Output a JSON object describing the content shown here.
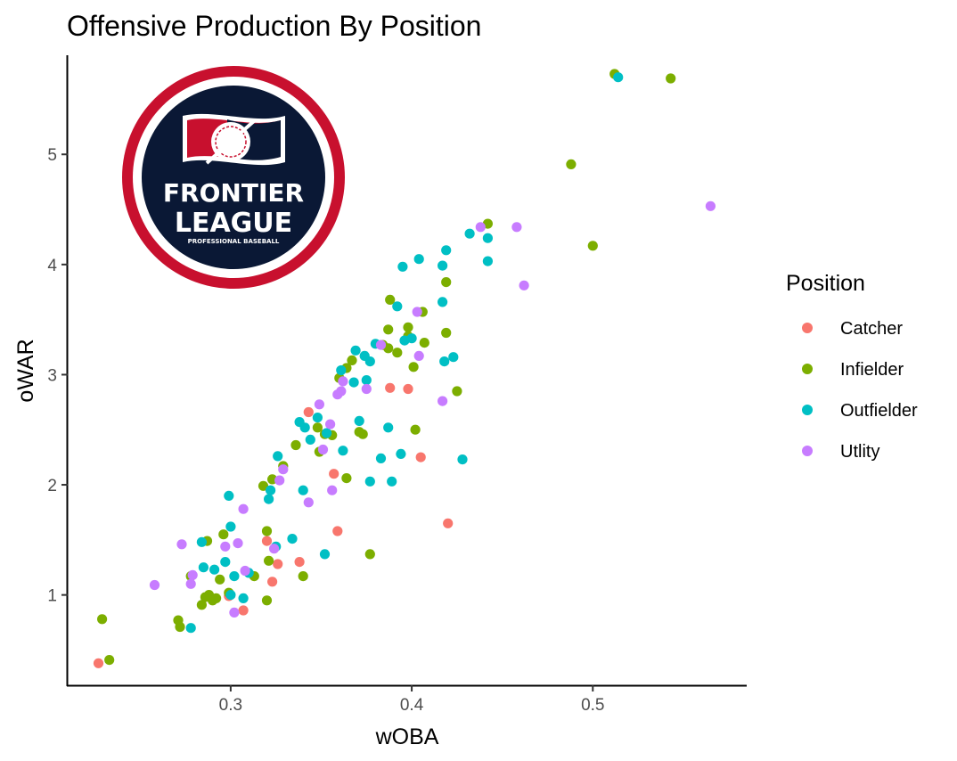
{
  "chart_data": {
    "type": "scatter",
    "title": "Offensive Production By Position",
    "xlabel": "wOBA",
    "ylabel": "oWAR",
    "xlim": [
      0.21,
      0.585
    ],
    "ylim": [
      0.18,
      5.9
    ],
    "x_ticks": [
      0.3,
      0.4,
      0.5
    ],
    "x_tick_labels": [
      "0.3",
      "0.4",
      "0.5"
    ],
    "y_ticks": [
      1,
      2,
      3,
      4,
      5
    ],
    "y_tick_labels": [
      "1",
      "2",
      "3",
      "4",
      "5"
    ],
    "grid": false,
    "legend": {
      "title": "Position",
      "placement": "right"
    },
    "logo": {
      "name": "frontier-league-logo",
      "line1": "FRONTIER",
      "line2": "LEAGUE",
      "line3": "PROFESSIONAL BASEBALL"
    },
    "series": [
      {
        "name": "Catcher",
        "color": "#F8766D",
        "points": [
          [
            0.227,
            0.38
          ],
          [
            0.307,
            0.86
          ],
          [
            0.299,
            0.99
          ],
          [
            0.32,
            1.49
          ],
          [
            0.323,
            1.12
          ],
          [
            0.326,
            1.28
          ],
          [
            0.338,
            1.3
          ],
          [
            0.359,
            1.58
          ],
          [
            0.343,
            2.66
          ],
          [
            0.357,
            2.1
          ],
          [
            0.388,
            2.88
          ],
          [
            0.398,
            2.87
          ],
          [
            0.405,
            2.25
          ],
          [
            0.42,
            1.65
          ]
        ]
      },
      {
        "name": "Infielder",
        "color": "#7CAE00",
        "points": [
          [
            0.229,
            0.78
          ],
          [
            0.233,
            0.41
          ],
          [
            0.271,
            0.77
          ],
          [
            0.272,
            0.71
          ],
          [
            0.278,
            1.17
          ],
          [
            0.284,
            0.91
          ],
          [
            0.286,
            0.98
          ],
          [
            0.288,
            1.0
          ],
          [
            0.29,
            0.95
          ],
          [
            0.292,
            0.97
          ],
          [
            0.294,
            1.14
          ],
          [
            0.287,
            1.49
          ],
          [
            0.296,
            1.55
          ],
          [
            0.299,
            1.02
          ],
          [
            0.313,
            1.17
          ],
          [
            0.32,
            0.95
          ],
          [
            0.321,
            1.31
          ],
          [
            0.32,
            1.58
          ],
          [
            0.318,
            1.99
          ],
          [
            0.323,
            2.05
          ],
          [
            0.329,
            2.17
          ],
          [
            0.336,
            2.36
          ],
          [
            0.34,
            1.17
          ],
          [
            0.348,
            2.52
          ],
          [
            0.349,
            2.3
          ],
          [
            0.352,
            2.46
          ],
          [
            0.356,
            2.45
          ],
          [
            0.36,
            2.97
          ],
          [
            0.364,
            3.06
          ],
          [
            0.364,
            2.06
          ],
          [
            0.367,
            3.13
          ],
          [
            0.371,
            2.48
          ],
          [
            0.373,
            2.46
          ],
          [
            0.384,
            3.27
          ],
          [
            0.387,
            3.41
          ],
          [
            0.387,
            3.24
          ],
          [
            0.388,
            3.68
          ],
          [
            0.392,
            3.2
          ],
          [
            0.398,
            3.43
          ],
          [
            0.398,
            3.35
          ],
          [
            0.401,
            3.07
          ],
          [
            0.402,
            2.5
          ],
          [
            0.406,
            3.57
          ],
          [
            0.407,
            3.29
          ],
          [
            0.419,
            3.84
          ],
          [
            0.419,
            3.38
          ],
          [
            0.425,
            2.85
          ],
          [
            0.442,
            4.37
          ],
          [
            0.377,
            1.37
          ],
          [
            0.488,
            4.91
          ],
          [
            0.5,
            4.17
          ],
          [
            0.512,
            5.73
          ],
          [
            0.543,
            5.69
          ]
        ]
      },
      {
        "name": "Outfielder",
        "color": "#00BFC4",
        "points": [
          [
            0.278,
            0.7
          ],
          [
            0.285,
            1.25
          ],
          [
            0.284,
            1.48
          ],
          [
            0.291,
            1.23
          ],
          [
            0.297,
            1.3
          ],
          [
            0.3,
            1.62
          ],
          [
            0.299,
            1.9
          ],
          [
            0.302,
            1.17
          ],
          [
            0.3,
            1.0
          ],
          [
            0.307,
            0.97
          ],
          [
            0.31,
            1.2
          ],
          [
            0.321,
            1.87
          ],
          [
            0.322,
            1.95
          ],
          [
            0.325,
            1.44
          ],
          [
            0.326,
            2.26
          ],
          [
            0.334,
            1.51
          ],
          [
            0.338,
            2.57
          ],
          [
            0.34,
            1.95
          ],
          [
            0.341,
            2.52
          ],
          [
            0.344,
            2.41
          ],
          [
            0.348,
            2.61
          ],
          [
            0.352,
            1.37
          ],
          [
            0.353,
            2.47
          ],
          [
            0.361,
            3.04
          ],
          [
            0.362,
            2.31
          ],
          [
            0.368,
            2.93
          ],
          [
            0.369,
            3.22
          ],
          [
            0.371,
            2.58
          ],
          [
            0.374,
            3.17
          ],
          [
            0.375,
            2.95
          ],
          [
            0.377,
            2.03
          ],
          [
            0.377,
            3.12
          ],
          [
            0.38,
            3.28
          ],
          [
            0.383,
            2.24
          ],
          [
            0.387,
            2.52
          ],
          [
            0.389,
            2.03
          ],
          [
            0.392,
            3.62
          ],
          [
            0.394,
            2.28
          ],
          [
            0.395,
            3.98
          ],
          [
            0.396,
            3.31
          ],
          [
            0.4,
            3.33
          ],
          [
            0.404,
            4.05
          ],
          [
            0.418,
            3.12
          ],
          [
            0.417,
            3.66
          ],
          [
            0.417,
            3.99
          ],
          [
            0.419,
            4.13
          ],
          [
            0.423,
            3.16
          ],
          [
            0.428,
            2.23
          ],
          [
            0.432,
            4.28
          ],
          [
            0.442,
            4.03
          ],
          [
            0.442,
            4.24
          ],
          [
            0.514,
            5.7
          ]
        ]
      },
      {
        "name": "Utlity",
        "color": "#C77CFF",
        "points": [
          [
            0.258,
            1.09
          ],
          [
            0.273,
            1.46
          ],
          [
            0.278,
            1.1
          ],
          [
            0.279,
            1.18
          ],
          [
            0.297,
            1.44
          ],
          [
            0.302,
            0.84
          ],
          [
            0.304,
            1.47
          ],
          [
            0.307,
            1.78
          ],
          [
            0.308,
            1.22
          ],
          [
            0.324,
            1.42
          ],
          [
            0.327,
            2.04
          ],
          [
            0.329,
            2.14
          ],
          [
            0.343,
            1.84
          ],
          [
            0.349,
            2.73
          ],
          [
            0.351,
            2.32
          ],
          [
            0.356,
            1.95
          ],
          [
            0.355,
            2.55
          ],
          [
            0.359,
            2.82
          ],
          [
            0.361,
            2.85
          ],
          [
            0.362,
            2.94
          ],
          [
            0.375,
            2.87
          ],
          [
            0.383,
            3.27
          ],
          [
            0.403,
            3.57
          ],
          [
            0.404,
            3.17
          ],
          [
            0.417,
            2.76
          ],
          [
            0.438,
            4.34
          ],
          [
            0.458,
            4.34
          ],
          [
            0.462,
            3.81
          ],
          [
            0.565,
            4.53
          ]
        ]
      }
    ]
  }
}
